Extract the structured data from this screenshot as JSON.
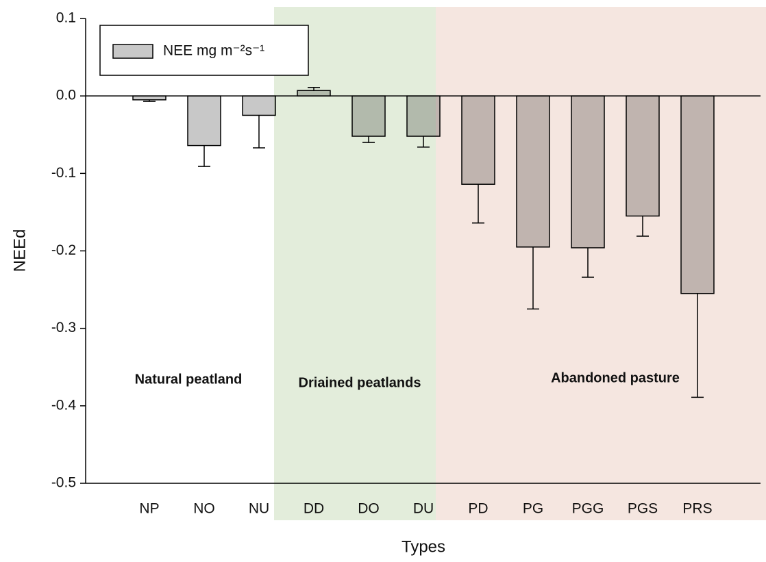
{
  "chart_data": {
    "type": "bar",
    "categories": [
      "NP",
      "NO",
      "NU",
      "DD",
      "DO",
      "DU",
      "PD",
      "PG",
      "PGG",
      "PGS",
      "PRS"
    ],
    "series": [
      {
        "name": "NEE  mg m⁻²s⁻¹",
        "color": "#c8c8c8",
        "values": [
          -0.005,
          -0.064,
          -0.025,
          0.007,
          -0.052,
          -0.052,
          -0.114,
          -0.195,
          -0.196,
          -0.155,
          -0.255
        ],
        "errors": [
          0.002,
          0.027,
          0.042,
          0.004,
          0.008,
          0.014,
          0.05,
          0.08,
          0.038,
          0.026,
          0.134
        ]
      }
    ],
    "ylim": [
      -0.5,
      0.1
    ],
    "yticks": [
      0.1,
      {
        "value": 0,
        "label": "0.0"
      },
      -0.1,
      -0.2,
      -0.3,
      -0.4,
      -0.5
    ],
    "xlabel": "Types",
    "ylabel": "NEEd",
    "annotations": [
      "Natural peatland",
      "Driained peatlands",
      "Abandoned pasture"
    ],
    "legend": "upper left"
  }
}
